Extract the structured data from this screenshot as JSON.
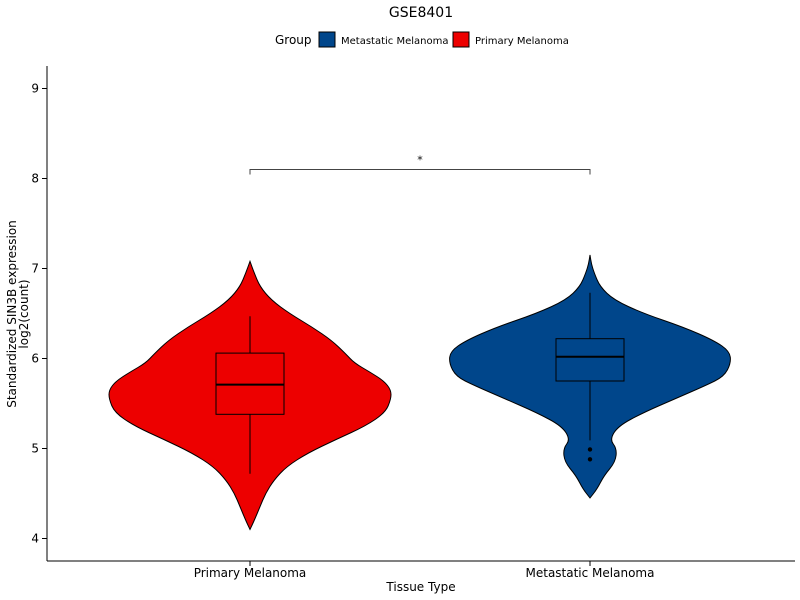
{
  "chart_data": {
    "type": "violin",
    "title": "GSE8401",
    "xlabel": "Tissue Type",
    "ylabel_lines": [
      "Standardized SIN3B expression",
      "log2(count)"
    ],
    "ylim": [
      3.75,
      9.25
    ],
    "yticks": [
      4,
      5,
      6,
      7,
      8,
      9
    ],
    "legend": {
      "title": "Group",
      "placement": "top",
      "entries": [
        {
          "name": "Metastatic Melanoma",
          "color": "#00468B"
        },
        {
          "name": "Primary Melanoma",
          "color": "#ED0000"
        }
      ]
    },
    "categories": [
      "Primary Melanoma",
      "Metastatic Melanoma"
    ],
    "groups": [
      {
        "name": "Primary Melanoma",
        "color": "#ED0000",
        "box": {
          "q1": 5.38,
          "median": 5.71,
          "q3": 6.06,
          "whisker_low": 4.72,
          "whisker_high": 6.47
        },
        "outliers": [],
        "density": [
          [
            4.1,
            0.0
          ],
          [
            4.2,
            0.03
          ],
          [
            4.35,
            0.07
          ],
          [
            4.5,
            0.11
          ],
          [
            4.65,
            0.17
          ],
          [
            4.8,
            0.26
          ],
          [
            4.95,
            0.41
          ],
          [
            5.1,
            0.61
          ],
          [
            5.25,
            0.82
          ],
          [
            5.4,
            0.96
          ],
          [
            5.55,
            1.0
          ],
          [
            5.65,
            1.0
          ],
          [
            5.75,
            0.95
          ],
          [
            5.85,
            0.85
          ],
          [
            5.95,
            0.74
          ],
          [
            6.05,
            0.68
          ],
          [
            6.2,
            0.58
          ],
          [
            6.35,
            0.44
          ],
          [
            6.5,
            0.28
          ],
          [
            6.65,
            0.15
          ],
          [
            6.8,
            0.07
          ],
          [
            6.95,
            0.03
          ],
          [
            7.08,
            0.0
          ]
        ]
      },
      {
        "name": "Metastatic Melanoma",
        "color": "#00468B",
        "box": {
          "q1": 5.75,
          "median": 6.02,
          "q3": 6.22,
          "whisker_low": 5.09,
          "whisker_high": 6.73
        },
        "outliers": [
          4.99,
          4.88
        ],
        "density": [
          [
            4.45,
            0.0
          ],
          [
            4.55,
            0.05
          ],
          [
            4.7,
            0.1
          ],
          [
            4.85,
            0.18
          ],
          [
            5.0,
            0.19
          ],
          [
            5.1,
            0.14
          ],
          [
            5.25,
            0.2
          ],
          [
            5.4,
            0.38
          ],
          [
            5.55,
            0.6
          ],
          [
            5.7,
            0.82
          ],
          [
            5.8,
            0.95
          ],
          [
            5.95,
            1.0
          ],
          [
            6.08,
            0.99
          ],
          [
            6.2,
            0.88
          ],
          [
            6.35,
            0.66
          ],
          [
            6.5,
            0.38
          ],
          [
            6.65,
            0.17
          ],
          [
            6.8,
            0.07
          ],
          [
            6.95,
            0.03
          ],
          [
            7.05,
            0.01
          ],
          [
            7.15,
            0.0
          ]
        ]
      }
    ],
    "comparison": {
      "between": [
        "Primary Melanoma",
        "Metastatic Melanoma"
      ],
      "y": 8.1,
      "label": "*"
    }
  }
}
